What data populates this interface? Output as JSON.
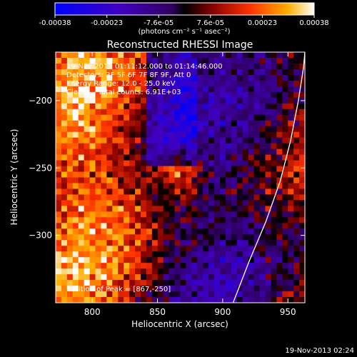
{
  "chart_data": {
    "type": "heatmap",
    "title": "Reconstructed RHESSI Image",
    "xlabel": "Heliocentric X (arcsec)",
    "ylabel": "Heliocentric Y (arcsec)",
    "xlim": [
      772,
      963
    ],
    "ylim": [
      -350,
      -164
    ],
    "x_ticks": [
      800,
      850,
      900,
      950
    ],
    "y_ticks": [
      -200,
      -250,
      -300
    ],
    "colorbar": {
      "ticks": [
        "-0.00038",
        "-0.00023",
        "-7.6e-05",
        "7.6e-05",
        "0.00023",
        "0.00038"
      ],
      "unit_label": "(photons cm⁻² s⁻¹ asec⁻²)",
      "vmin": -0.00038,
      "vmax": 0.00038
    },
    "annotations": {
      "time_range": "19-Nov-2013 01:11:12.000 to 01:14:46.000",
      "detectors": "Detectors: 3F 5F 6F 7F 8F 9F, Att 0",
      "energy": "Energy Range: 12.0 - 25.0 keV",
      "clean": "Clean     Total counts: 6.91E+03",
      "peak": "Position of Peak = [867,-250]"
    },
    "peak_position": [
      867,
      -250
    ],
    "limb_curve": [
      [
        908,
        -350
      ],
      [
        920,
        -320
      ],
      [
        933,
        -290
      ],
      [
        944,
        -260
      ],
      [
        952,
        -230
      ],
      [
        958,
        -200
      ],
      [
        962,
        -175
      ],
      [
        963,
        -164
      ]
    ]
  },
  "footer": {
    "timestamp": "19-Nov-2013 02:24"
  }
}
